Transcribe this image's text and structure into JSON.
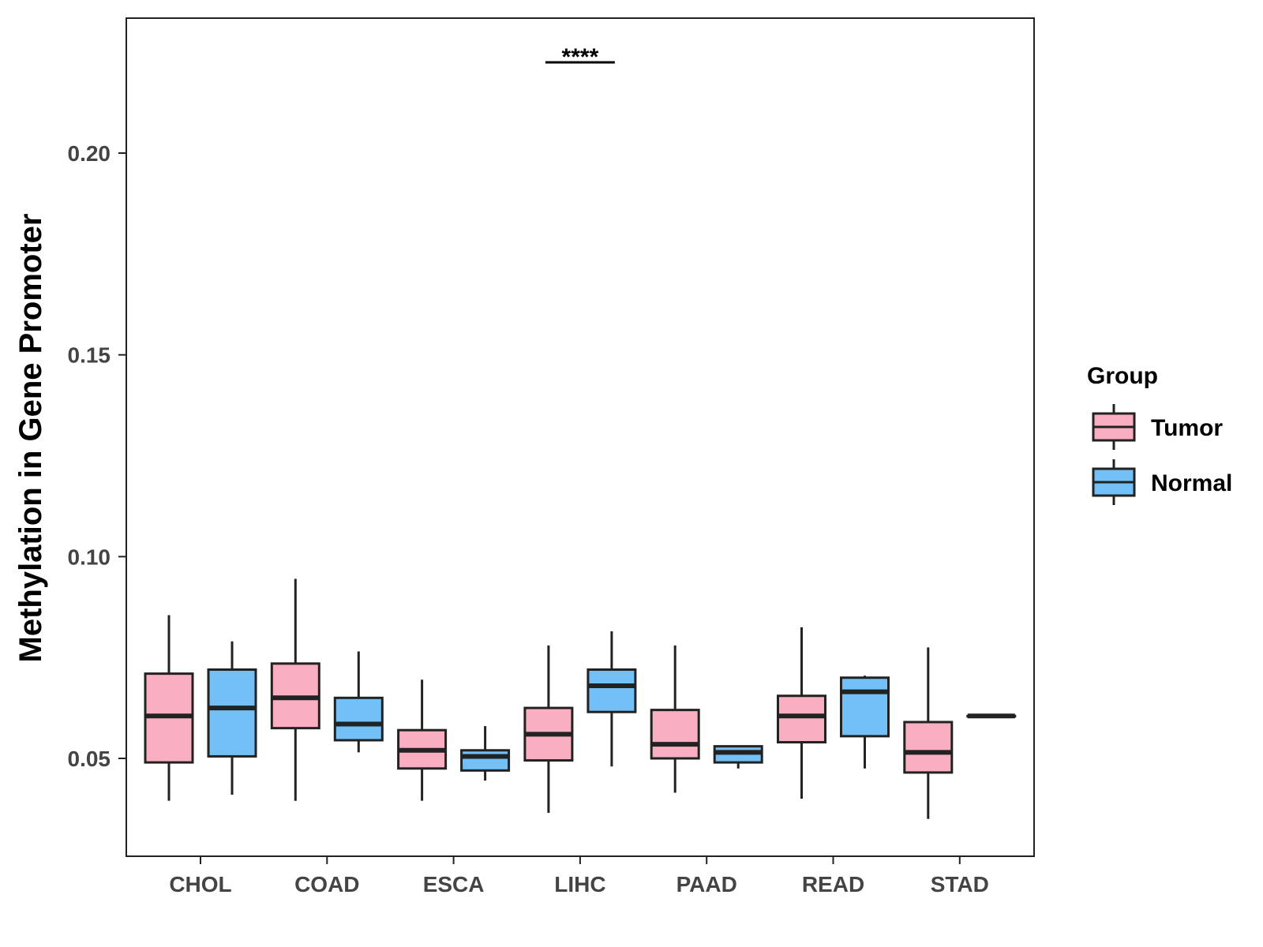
{
  "chart_data": {
    "type": "boxplot",
    "title": "",
    "xlabel": "",
    "ylabel": "Methylation in Gene Promoter",
    "ylim": [
      0.025,
      0.233
    ],
    "yticks": [
      0.05,
      0.1,
      0.15,
      0.2
    ],
    "ytick_labels": [
      "0.05",
      "0.10",
      "0.15",
      "0.20"
    ],
    "categories": [
      "CHOL",
      "COAD",
      "ESCA",
      "LIHC",
      "PAAD",
      "READ",
      "STAD"
    ],
    "legend": {
      "title": "Group",
      "position": "right",
      "entries": [
        {
          "name": "Tumor",
          "color": "#f9afc1"
        },
        {
          "name": "Normal",
          "color": "#73c0f6"
        }
      ]
    },
    "series": [
      {
        "name": "Tumor",
        "color": "#f9afc1",
        "boxes": [
          {
            "category": "CHOL",
            "min": 0.0395,
            "q1": 0.049,
            "median": 0.0605,
            "q3": 0.071,
            "max": 0.0855
          },
          {
            "category": "COAD",
            "min": 0.0395,
            "q1": 0.0575,
            "median": 0.065,
            "q3": 0.0735,
            "max": 0.0945
          },
          {
            "category": "ESCA",
            "min": 0.0395,
            "q1": 0.0475,
            "median": 0.052,
            "q3": 0.057,
            "max": 0.0695
          },
          {
            "category": "LIHC",
            "min": 0.0365,
            "q1": 0.0495,
            "median": 0.056,
            "q3": 0.0625,
            "max": 0.078
          },
          {
            "category": "PAAD",
            "min": 0.0415,
            "q1": 0.05,
            "median": 0.0535,
            "q3": 0.062,
            "max": 0.078
          },
          {
            "category": "READ",
            "min": 0.04,
            "q1": 0.054,
            "median": 0.0605,
            "q3": 0.0655,
            "max": 0.0825
          },
          {
            "category": "STAD",
            "min": 0.035,
            "q1": 0.0465,
            "median": 0.0515,
            "q3": 0.059,
            "max": 0.0775
          }
        ]
      },
      {
        "name": "Normal",
        "color": "#73c0f6",
        "boxes": [
          {
            "category": "CHOL",
            "min": 0.041,
            "q1": 0.0505,
            "median": 0.0625,
            "q3": 0.072,
            "max": 0.079
          },
          {
            "category": "COAD",
            "min": 0.0515,
            "q1": 0.0545,
            "median": 0.0585,
            "q3": 0.065,
            "max": 0.0765
          },
          {
            "category": "ESCA",
            "min": 0.0445,
            "q1": 0.047,
            "median": 0.0505,
            "q3": 0.052,
            "max": 0.058
          },
          {
            "category": "LIHC",
            "min": 0.048,
            "q1": 0.0615,
            "median": 0.068,
            "q3": 0.072,
            "max": 0.0815
          },
          {
            "category": "PAAD",
            "min": 0.0475,
            "q1": 0.049,
            "median": 0.0515,
            "q3": 0.053,
            "max": 0.053
          },
          {
            "category": "READ",
            "min": 0.0475,
            "q1": 0.0555,
            "median": 0.0665,
            "q3": 0.07,
            "max": 0.0705
          },
          {
            "category": "STAD",
            "min": 0.0605,
            "q1": 0.0605,
            "median": 0.0605,
            "q3": 0.0605,
            "max": 0.0605
          }
        ]
      }
    ],
    "annotations": [
      {
        "category": "LIHC",
        "text": "****",
        "y": 0.2225
      }
    ]
  }
}
